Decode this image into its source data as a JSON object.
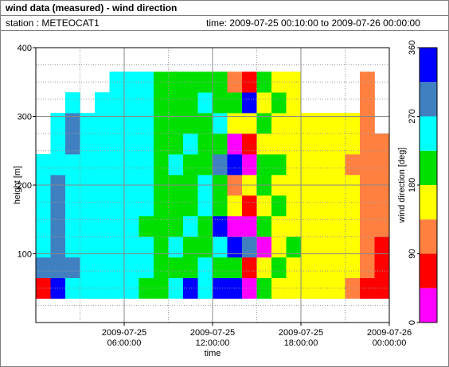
{
  "header": {
    "title": "wind data (measured) - wind direction",
    "station": "station : METEOCAT1",
    "time": "time: 2009-07-25 00:10:00 to 2009-07-26 00:00:00"
  },
  "chart_data": {
    "type": "heatmap",
    "xlabel": "time",
    "ylabel": "height [m]",
    "clabel": "wind direction [deg]",
    "x": [
      "2009-07-25 00:30:00",
      "2009-07-25 01:30:00",
      "2009-07-25 02:30:00",
      "2009-07-25 03:30:00",
      "2009-07-25 04:30:00",
      "2009-07-25 05:30:00",
      "2009-07-25 06:30:00",
      "2009-07-25 07:30:00",
      "2009-07-25 08:30:00",
      "2009-07-25 09:30:00",
      "2009-07-25 10:30:00",
      "2009-07-25 11:30:00",
      "2009-07-25 12:30:00",
      "2009-07-25 13:30:00",
      "2009-07-25 14:30:00",
      "2009-07-25 15:30:00",
      "2009-07-25 16:30:00",
      "2009-07-25 17:30:00",
      "2009-07-25 18:30:00",
      "2009-07-25 19:30:00",
      "2009-07-25 20:30:00",
      "2009-07-25 21:30:00",
      "2009-07-25 22:30:00",
      "2009-07-25 23:30:00"
    ],
    "y": [
      50,
      80,
      110,
      140,
      170,
      200,
      230,
      260,
      290,
      320,
      350
    ],
    "values": [
      [
        70,
        290,
        250,
        250,
        250,
        250,
        250,
        null,
        null,
        null,
        null
      ],
      [
        330,
        290,
        290,
        290,
        290,
        290,
        250,
        250,
        250,
        null,
        null
      ],
      [
        250,
        290,
        250,
        250,
        250,
        250,
        250,
        290,
        290,
        250,
        null
      ],
      [
        250,
        250,
        250,
        250,
        250,
        250,
        250,
        250,
        250,
        null,
        null
      ],
      [
        250,
        250,
        250,
        250,
        250,
        250,
        250,
        250,
        250,
        250,
        null
      ],
      [
        250,
        250,
        250,
        250,
        250,
        250,
        250,
        250,
        250,
        250,
        250
      ],
      [
        250,
        250,
        250,
        250,
        250,
        250,
        250,
        250,
        250,
        250,
        250
      ],
      [
        200,
        250,
        250,
        200,
        250,
        250,
        250,
        250,
        250,
        250,
        250
      ],
      [
        200,
        200,
        200,
        200,
        200,
        200,
        200,
        200,
        200,
        200,
        200
      ],
      [
        250,
        200,
        250,
        200,
        200,
        200,
        250,
        200,
        200,
        200,
        200
      ],
      [
        330,
        200,
        200,
        250,
        200,
        200,
        200,
        250,
        200,
        200,
        200
      ],
      [
        250,
        250,
        200,
        200,
        250,
        250,
        200,
        200,
        200,
        250,
        200
      ],
      [
        330,
        200,
        250,
        330,
        200,
        200,
        290,
        200,
        250,
        200,
        200
      ],
      [
        330,
        200,
        330,
        20,
        160,
        110,
        330,
        20,
        160,
        200,
        110
      ],
      [
        20,
        70,
        290,
        20,
        70,
        160,
        20,
        70,
        160,
        330,
        70
      ],
      [
        200,
        160,
        20,
        200,
        160,
        200,
        200,
        160,
        200,
        160,
        200
      ],
      [
        160,
        200,
        160,
        160,
        200,
        160,
        200,
        160,
        160,
        200,
        160
      ],
      [
        160,
        160,
        200,
        160,
        160,
        160,
        160,
        160,
        160,
        160,
        160
      ],
      [
        160,
        160,
        160,
        160,
        160,
        160,
        160,
        160,
        160,
        null,
        null
      ],
      [
        160,
        160,
        160,
        160,
        160,
        160,
        160,
        160,
        160,
        null,
        null
      ],
      [
        160,
        160,
        160,
        160,
        160,
        160,
        160,
        160,
        160,
        null,
        null
      ],
      [
        110,
        160,
        160,
        160,
        160,
        160,
        110,
        160,
        160,
        null,
        null
      ],
      [
        70,
        110,
        110,
        110,
        110,
        110,
        110,
        110,
        110,
        110,
        110
      ],
      [
        70,
        70,
        70,
        110,
        110,
        110,
        110,
        110,
        null,
        null,
        null
      ]
    ],
    "xlim": [
      "2009-07-25 00:00:00",
      "2009-07-26 00:00:00"
    ],
    "xticks": [
      "2009-07-25 06:00:00",
      "2009-07-25 12:00:00",
      "2009-07-25 18:00:00",
      "2009-07-26 00:00:00"
    ],
    "ylim": [
      0,
      400
    ],
    "yticks": [
      100,
      200,
      300,
      400
    ],
    "clim": [
      0,
      360
    ],
    "cticks": [
      0,
      90,
      180,
      270,
      360
    ],
    "colors": [
      "#ff00ff",
      "#ff0000",
      "#ff8040",
      "#ffff00",
      "#00e000",
      "#00ffff",
      "#4080c0",
      "#0000ff"
    ],
    "grid": true
  }
}
